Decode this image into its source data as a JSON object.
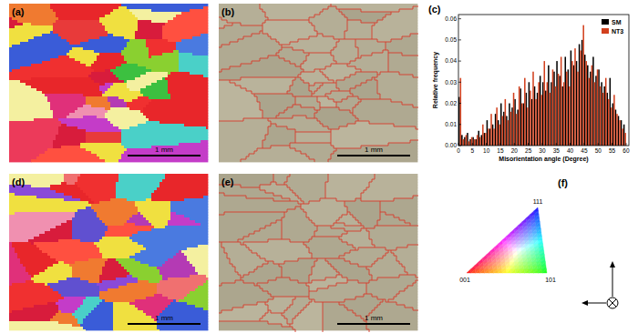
{
  "figure": {
    "panel_labels": [
      "(a)",
      "(b)",
      "(c)",
      "(d)",
      "(e)",
      "(f)"
    ],
    "scale_bar_label": "1 mm",
    "ipf_labels": [
      "001",
      "101",
      "111"
    ]
  },
  "chart_data": {
    "type": "histogram",
    "x_label": "Misorientation angle (Degree)",
    "y_label": "Relative frequency",
    "bins": [
      0,
      1,
      2,
      3,
      4,
      5,
      6,
      7,
      8,
      9,
      10,
      11,
      12,
      13,
      14,
      15,
      16,
      17,
      18,
      19,
      20,
      21,
      22,
      23,
      24,
      25,
      26,
      27,
      28,
      29,
      30,
      31,
      32,
      33,
      34,
      35,
      36,
      37,
      38,
      39,
      40,
      41,
      42,
      43,
      44,
      45,
      46,
      47,
      48,
      49,
      50,
      51,
      52,
      53,
      54,
      55,
      56,
      57,
      58,
      59,
      60
    ],
    "series": [
      {
        "name": "SM",
        "color": "#000000",
        "values": [
          0.023,
          0.005,
          0.004,
          0.006,
          0.003,
          0.004,
          0.003,
          0.007,
          0.005,
          0.006,
          0.012,
          0.008,
          0.01,
          0.015,
          0.012,
          0.02,
          0.016,
          0.014,
          0.02,
          0.018,
          0.022,
          0.017,
          0.027,
          0.02,
          0.025,
          0.03,
          0.022,
          0.028,
          0.025,
          0.033,
          0.03,
          0.026,
          0.038,
          0.03,
          0.035,
          0.04,
          0.033,
          0.028,
          0.042,
          0.036,
          0.045,
          0.038,
          0.04,
          0.048,
          0.05,
          0.043,
          0.038,
          0.035,
          0.042,
          0.033,
          0.036,
          0.03,
          0.028,
          0.025,
          0.032,
          0.02,
          0.017,
          0.014,
          0.012,
          0.01
        ]
      },
      {
        "name": "NT3",
        "color": "#d2401e",
        "values": [
          0.032,
          0.003,
          0.005,
          0.002,
          0.004,
          0.003,
          0.005,
          0.004,
          0.01,
          0.006,
          0.008,
          0.015,
          0.008,
          0.018,
          0.01,
          0.014,
          0.022,
          0.012,
          0.016,
          0.025,
          0.015,
          0.028,
          0.02,
          0.032,
          0.018,
          0.026,
          0.035,
          0.022,
          0.03,
          0.024,
          0.04,
          0.03,
          0.025,
          0.036,
          0.028,
          0.034,
          0.042,
          0.03,
          0.035,
          0.028,
          0.04,
          0.046,
          0.035,
          0.045,
          0.057,
          0.04,
          0.032,
          0.038,
          0.03,
          0.036,
          0.028,
          0.025,
          0.032,
          0.022,
          0.018,
          0.024,
          0.015,
          0.012,
          0.008,
          0.006
        ]
      }
    ],
    "xlim": [
      0,
      61
    ],
    "xticks": [
      0,
      5,
      10,
      15,
      20,
      25,
      30,
      35,
      40,
      45,
      50,
      55,
      60
    ],
    "ylim": [
      0,
      0.062
    ],
    "yticks": [
      {
        "value": 0,
        "label": "0.00"
      },
      0.01,
      0.02,
      0.03,
      0.04,
      0.05,
      0.06
    ],
    "legend": "upper right",
    "grid": false
  }
}
